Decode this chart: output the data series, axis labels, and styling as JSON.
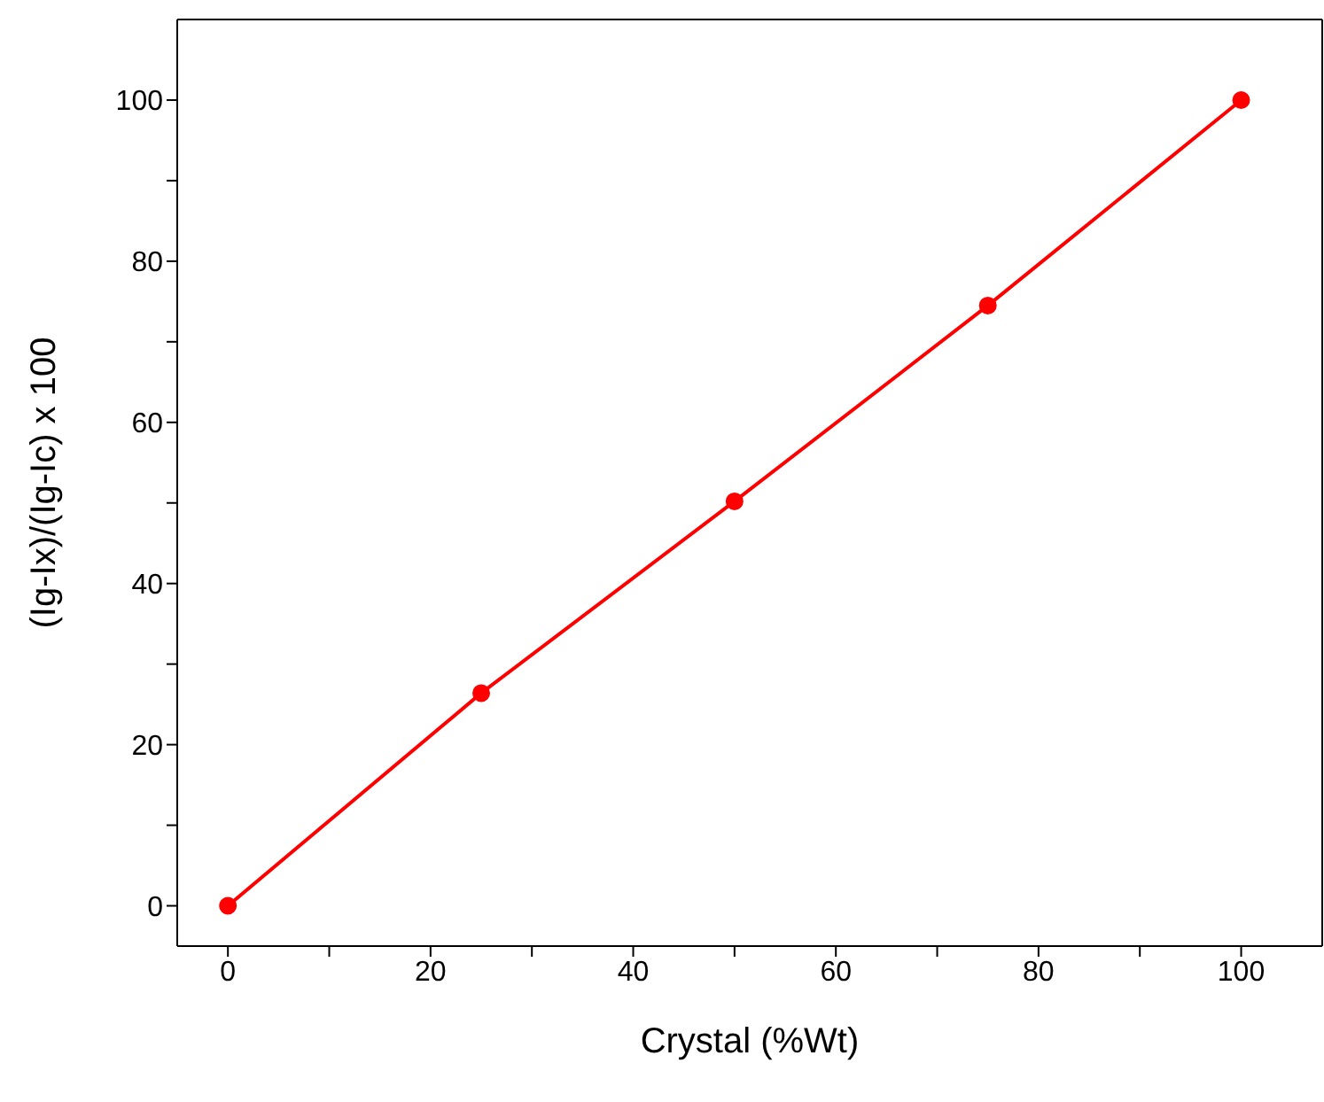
{
  "chart_data": {
    "type": "line",
    "xlabel": "Crystal (%Wt)",
    "ylabel": "(Ig-Ix)/(Ig-Ic) x 100",
    "x": [
      0,
      25,
      50,
      75,
      100
    ],
    "series": [
      {
        "color": "#ff0000",
        "values": [
          0,
          26.4,
          50.2,
          74.5,
          100
        ]
      }
    ],
    "xlim": [
      -5,
      108
    ],
    "ylim": [
      -5,
      110
    ],
    "xticks": [
      0,
      {
        "value": 10,
        "label": null
      },
      20,
      {
        "value": 30,
        "label": null
      },
      40,
      {
        "value": 50,
        "label": null
      },
      60,
      {
        "value": 70,
        "label": null
      },
      80,
      {
        "value": 90,
        "label": null
      },
      100
    ],
    "yticks": [
      0,
      {
        "value": 10,
        "label": null
      },
      20,
      {
        "value": 30,
        "label": null
      },
      40,
      {
        "value": 50,
        "label": null
      },
      60,
      {
        "value": 70,
        "label": null
      },
      80,
      {
        "value": 90,
        "label": null
      },
      100
    ],
    "marker": "circle",
    "line_style": "solid",
    "grid": false,
    "legend": false
  }
}
